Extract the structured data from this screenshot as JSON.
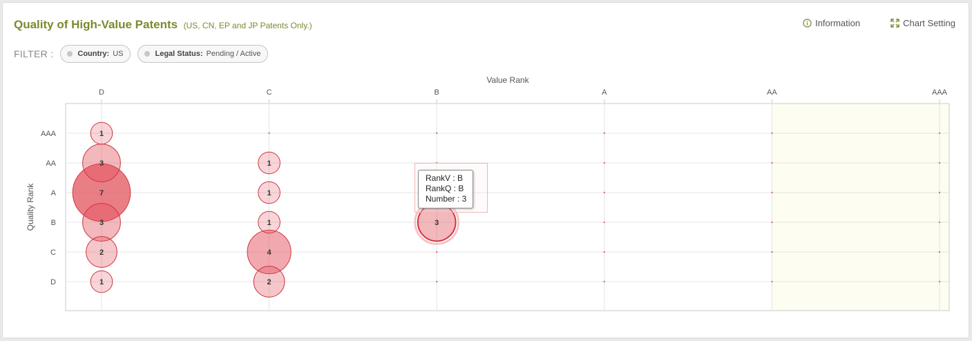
{
  "header": {
    "title": "Quality of High-Value Patents",
    "subtitle": "(US, CN, EP and JP Patents Only.)",
    "information_label": "Information",
    "chart_setting_label": "Chart Setting"
  },
  "filter": {
    "label": "FILTER :",
    "country_key": "Country:",
    "country_value": "US",
    "status_key": "Legal Status:",
    "status_value": "Pending / Active"
  },
  "tooltip": {
    "line1": "RankV : B",
    "line2": "RankQ : B",
    "line3": "Number : 3"
  },
  "colors": {
    "title": "#7a8a2e",
    "bubble_stroke": "#d0343f",
    "bubble_fill": "#e3545f",
    "highlight_band": "#fdfdf1"
  },
  "chart_data": {
    "type": "scatter",
    "xlabel": "Value Rank",
    "ylabel": "Quality Rank",
    "x_categories": [
      "D",
      "C",
      "B",
      "A",
      "AA",
      "AAA"
    ],
    "y_categories": [
      "AAA",
      "AA",
      "A",
      "B",
      "C",
      "D"
    ],
    "highlight_x_from": "AA",
    "points": [
      {
        "x": "D",
        "y": "AAA",
        "value": 1
      },
      {
        "x": "D",
        "y": "AA",
        "value": 3
      },
      {
        "x": "D",
        "y": "A",
        "value": 7
      },
      {
        "x": "D",
        "y": "B",
        "value": 3
      },
      {
        "x": "D",
        "y": "C",
        "value": 2
      },
      {
        "x": "D",
        "y": "D",
        "value": 1
      },
      {
        "x": "C",
        "y": "AA",
        "value": 1
      },
      {
        "x": "C",
        "y": "A",
        "value": 1
      },
      {
        "x": "C",
        "y": "B",
        "value": 1
      },
      {
        "x": "C",
        "y": "C",
        "value": 4
      },
      {
        "x": "C",
        "y": "D",
        "value": 2
      },
      {
        "x": "B",
        "y": "B",
        "value": 3,
        "hovered": true
      }
    ]
  }
}
